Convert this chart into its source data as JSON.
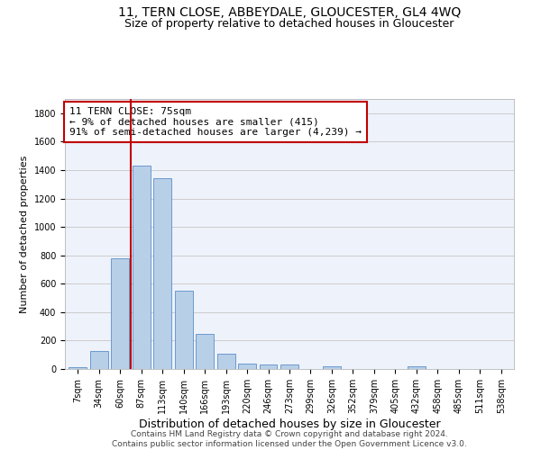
{
  "title": "11, TERN CLOSE, ABBEYDALE, GLOUCESTER, GL4 4WQ",
  "subtitle": "Size of property relative to detached houses in Gloucester",
  "xlabel": "Distribution of detached houses by size in Gloucester",
  "ylabel": "Number of detached properties",
  "categories": [
    "7sqm",
    "34sqm",
    "60sqm",
    "87sqm",
    "113sqm",
    "140sqm",
    "166sqm",
    "193sqm",
    "220sqm",
    "246sqm",
    "273sqm",
    "299sqm",
    "326sqm",
    "352sqm",
    "379sqm",
    "405sqm",
    "432sqm",
    "458sqm",
    "485sqm",
    "511sqm",
    "538sqm"
  ],
  "values": [
    15,
    125,
    780,
    1430,
    1340,
    550,
    250,
    110,
    35,
    30,
    30,
    0,
    20,
    0,
    0,
    0,
    20,
    0,
    0,
    0,
    0
  ],
  "bar_color": "#b8cfe8",
  "bar_edge_color": "#5b8fc9",
  "vline_color": "#c00000",
  "vline_pos": 2.5,
  "annotation_text": "11 TERN CLOSE: 75sqm\n← 9% of detached houses are smaller (415)\n91% of semi-detached houses are larger (4,239) →",
  "annotation_box_color": "#ffffff",
  "annotation_box_edge": "#c00000",
  "ylim": [
    0,
    1900
  ],
  "yticks": [
    0,
    200,
    400,
    600,
    800,
    1000,
    1200,
    1400,
    1600,
    1800
  ],
  "grid_color": "#cccccc",
  "background_color": "#eef2fb",
  "footer": "Contains HM Land Registry data © Crown copyright and database right 2024.\nContains public sector information licensed under the Open Government Licence v3.0.",
  "title_fontsize": 10,
  "subtitle_fontsize": 9,
  "xlabel_fontsize": 9,
  "ylabel_fontsize": 8,
  "tick_fontsize": 7,
  "footer_fontsize": 6.5,
  "annot_fontsize": 8
}
